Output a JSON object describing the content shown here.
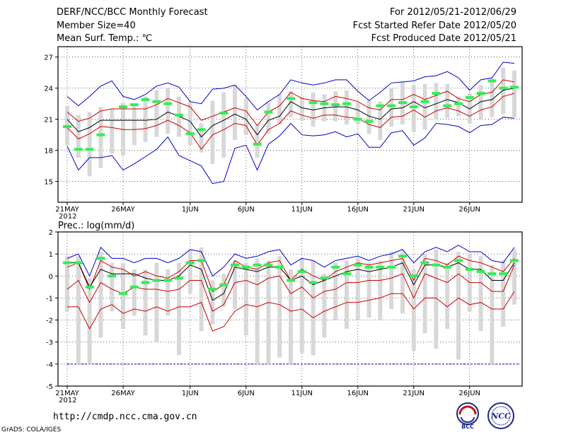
{
  "header": {
    "title": "DERF/NCC/BCC Monthly Forecast",
    "member_size": "Member Size=40",
    "variable": "Mean Surf. Temp.: ℃",
    "period": "For 2012/05/21-2012/06/29",
    "started": "Fcst Started Refer Date 2012/05/20",
    "produced": "Fcst Produced Date 2012/05/21"
  },
  "footer": {
    "url": "http://cmdp.ncc.cma.gov.cn",
    "credit": "GrADS: COLA/IGES"
  },
  "logos": {
    "bcc": "BCC",
    "ncc": "NCC"
  },
  "chart_data": [
    {
      "type": "line",
      "title": "Mean Surf. Temp.: ℃",
      "ylim": [
        13,
        28
      ],
      "yticks": [
        15,
        18,
        21,
        24,
        27
      ],
      "x_ticks": [
        {
          "day": 0,
          "label": "21MAY"
        },
        {
          "day": 5,
          "label": "26MAY"
        },
        {
          "day": 11,
          "label": "1JUN"
        },
        {
          "day": 16,
          "label": "6JUN"
        },
        {
          "day": 21,
          "label": "11JUN"
        },
        {
          "day": 26,
          "label": "16JUN"
        },
        {
          "day": 31,
          "label": "21JUN"
        },
        {
          "day": 36,
          "label": "26JUN"
        }
      ],
      "year_label": "2012",
      "series": [
        {
          "name": "max",
          "color": "#0000cc",
          "values": [
            23.2,
            22.3,
            23.2,
            24.2,
            24.7,
            23.2,
            22.9,
            23.4,
            24.2,
            24.5,
            24.1,
            22.7,
            22.5,
            23.9,
            24.0,
            24.3,
            23.2,
            21.9,
            22.7,
            23.4,
            24.8,
            24.5,
            24.3,
            24.5,
            24.8,
            24.8,
            23.7,
            22.8,
            23.6,
            24.5,
            24.6,
            24.7,
            25.1,
            25.2,
            25.6,
            25.0,
            23.8,
            24.8,
            25.0,
            26.5,
            26.4
          ]
        },
        {
          "name": "upper",
          "color": "#cc0000",
          "values": [
            21.7,
            20.8,
            21.1,
            21.8,
            22.0,
            22.0,
            22.0,
            22.0,
            22.4,
            23.0,
            22.6,
            22.2,
            20.9,
            21.3,
            21.7,
            22.1,
            21.8,
            20.4,
            21.7,
            22.3,
            23.6,
            23.0,
            22.8,
            22.7,
            23.2,
            23.0,
            22.7,
            22.1,
            21.9,
            22.9,
            22.9,
            23.4,
            22.9,
            23.3,
            23.7,
            23.0,
            22.7,
            23.4,
            23.6,
            24.8,
            24.6
          ]
        },
        {
          "name": "mean",
          "color": "#000000",
          "values": [
            21.0,
            19.8,
            20.2,
            20.9,
            20.9,
            20.9,
            20.9,
            20.9,
            21.0,
            21.7,
            21.3,
            20.8,
            19.3,
            20.4,
            20.9,
            21.5,
            21.0,
            19.5,
            20.9,
            21.3,
            22.7,
            22.1,
            21.9,
            22.1,
            22.2,
            22.2,
            21.9,
            21.3,
            21.0,
            22.0,
            22.1,
            22.7,
            22.1,
            22.5,
            22.9,
            22.6,
            22.0,
            22.7,
            22.9,
            23.8,
            24.0
          ]
        },
        {
          "name": "lower",
          "color": "#cc0000",
          "values": [
            20.2,
            19.1,
            19.6,
            20.3,
            20.2,
            20.0,
            20.0,
            20.1,
            20.4,
            20.9,
            20.4,
            19.7,
            18.1,
            19.5,
            20.0,
            20.6,
            20.4,
            18.5,
            20.0,
            20.6,
            21.8,
            21.4,
            21.1,
            21.4,
            21.4,
            21.2,
            21.1,
            20.5,
            20.2,
            21.2,
            21.3,
            21.9,
            21.2,
            21.8,
            22.1,
            21.8,
            21.3,
            21.9,
            22.2,
            23.2,
            23.5
          ]
        },
        {
          "name": "min",
          "color": "#0000cc",
          "values": [
            18.4,
            16.1,
            17.3,
            17.3,
            17.5,
            16.1,
            16.7,
            17.4,
            18.1,
            19.3,
            17.5,
            17.0,
            16.5,
            14.8,
            15.0,
            18.2,
            18.5,
            16.1,
            18.6,
            19.4,
            20.6,
            19.5,
            19.4,
            19.5,
            19.8,
            19.3,
            19.6,
            18.3,
            18.3,
            19.7,
            19.9,
            18.5,
            19.2,
            20.6,
            20.5,
            20.3,
            19.7,
            20.4,
            20.5,
            21.2,
            21.1
          ]
        }
      ],
      "boxes": {
        "color": "#d8d8d8",
        "low": [
          18.5,
          17.3,
          15.5,
          16.3,
          17.7,
          17.5,
          18.5,
          18.8,
          19.3,
          19.6,
          19.3,
          18.5,
          17.8,
          16.7,
          17.3,
          19.0,
          19.5,
          17.3,
          19.6,
          20.5,
          21.2,
          20.9,
          20.3,
          20.8,
          20.8,
          20.5,
          20.5,
          19.6,
          19.0,
          20.3,
          20.5,
          19.8,
          20.0,
          21.0,
          21.1,
          21.3,
          20.6,
          21.0,
          21.2,
          21.5,
          21.2
        ],
        "high": [
          22.3,
          21.4,
          21.7,
          22.2,
          22.0,
          22.6,
          22.5,
          23.2,
          23.8,
          24.0,
          23.2,
          22.7,
          20.6,
          22.8,
          23.6,
          24.3,
          23.0,
          20.5,
          22.6,
          23.4,
          23.7,
          23.2,
          23.6,
          23.4,
          23.7,
          23.8,
          22.6,
          22.8,
          22.7,
          24.0,
          24.6,
          24.3,
          24.4,
          24.5,
          24.4,
          23.2,
          23.5,
          24.3,
          25.0,
          26.0,
          25.7
        ]
      },
      "obs": {
        "color": "#33ee55",
        "values": [
          20.3,
          18.1,
          18.1,
          19.5,
          null,
          22.2,
          22.4,
          22.9,
          22.7,
          22.5,
          21.4,
          19.6,
          20.0,
          null,
          21.6,
          null,
          null,
          18.6,
          21.7,
          null,
          23.0,
          null,
          22.6,
          22.5,
          22.4,
          22.5,
          21.0,
          20.8,
          22.3,
          22.3,
          22.6,
          22.2,
          22.7,
          23.5,
          22.3,
          22.5,
          23.1,
          23.5,
          24.7,
          24.0,
          24.1
        ]
      }
    },
    {
      "type": "line",
      "title": "Prec.: log(mm/d)",
      "ylim": [
        -5,
        2
      ],
      "yticks": [
        -5,
        -4,
        -3,
        -2,
        -1,
        0,
        1,
        2
      ],
      "x_ticks": [
        {
          "day": 0,
          "label": "21MAY"
        },
        {
          "day": 5,
          "label": "26MAY"
        },
        {
          "day": 11,
          "label": "1JUN"
        },
        {
          "day": 16,
          "label": "6JUN"
        },
        {
          "day": 21,
          "label": "11JUN"
        },
        {
          "day": 26,
          "label": "16JUN"
        },
        {
          "day": 31,
          "label": "21JUN"
        },
        {
          "day": 36,
          "label": "26JUN"
        }
      ],
      "year_label": "2012",
      "baseline": -4,
      "series": [
        {
          "name": "max",
          "color": "#0000cc",
          "values": [
            0.8,
            1.0,
            0.0,
            1.3,
            0.8,
            0.8,
            0.6,
            0.8,
            0.8,
            0.6,
            0.8,
            1.2,
            1.1,
            0.0,
            0.4,
            1.0,
            0.8,
            0.9,
            1.1,
            1.2,
            0.5,
            0.8,
            0.7,
            0.4,
            0.7,
            0.8,
            0.9,
            0.7,
            0.9,
            1.0,
            1.2,
            0.6,
            1.1,
            1.3,
            1.1,
            1.4,
            1.1,
            1.1,
            0.7,
            0.6,
            1.3
          ]
        },
        {
          "name": "upper",
          "color": "#cc0000",
          "values": [
            0.4,
            0.6,
            -0.6,
            0.7,
            0.4,
            0.3,
            0.0,
            0.2,
            0.0,
            -0.1,
            0.2,
            0.7,
            0.7,
            -0.7,
            -0.4,
            0.7,
            0.4,
            0.3,
            0.6,
            0.7,
            -0.2,
            0.3,
            0.0,
            -0.2,
            0.2,
            0.4,
            0.6,
            0.5,
            0.6,
            0.7,
            0.8,
            -0.2,
            0.8,
            0.7,
            0.5,
            0.9,
            0.7,
            0.6,
            0.4,
            0.2,
            0.8
          ]
        },
        {
          "name": "mean",
          "color": "#000000",
          "values": [
            0.6,
            0.6,
            -0.5,
            0.3,
            0.1,
            0.1,
            0.1,
            -0.1,
            -0.2,
            -0.2,
            0.0,
            0.5,
            0.3,
            -1.1,
            -0.8,
            0.4,
            0.3,
            0.2,
            0.4,
            0.4,
            -0.2,
            0.0,
            -0.4,
            -0.2,
            0.0,
            0.2,
            0.3,
            0.2,
            0.3,
            0.4,
            0.6,
            -0.4,
            0.5,
            0.5,
            0.4,
            0.6,
            0.3,
            0.3,
            -0.2,
            -0.2,
            0.6
          ]
        },
        {
          "name": "lower",
          "color": "#cc0000",
          "values": [
            -0.6,
            -0.2,
            -1.2,
            -0.3,
            -0.6,
            -0.8,
            -0.5,
            -0.6,
            -0.6,
            -0.7,
            -0.6,
            -0.2,
            -0.2,
            -1.6,
            -1.3,
            -0.3,
            -0.2,
            -0.4,
            -0.1,
            0.0,
            -0.8,
            -0.5,
            -1.0,
            -0.7,
            -0.6,
            -0.3,
            -0.3,
            -0.2,
            -0.2,
            -0.1,
            0.1,
            -1.0,
            0.1,
            -0.1,
            -0.3,
            0.1,
            -0.3,
            -0.3,
            -0.7,
            -0.7,
            0.5
          ]
        },
        {
          "name": "min",
          "color": "#cc0000",
          "values": [
            -1.4,
            -1.4,
            -2.4,
            -1.5,
            -1.3,
            -1.7,
            -1.5,
            -1.6,
            -1.4,
            -1.6,
            -1.4,
            -1.4,
            -1.2,
            -2.5,
            -2.3,
            -1.6,
            -1.3,
            -1.4,
            -1.2,
            -1.3,
            -1.6,
            -1.5,
            -1.9,
            -1.6,
            -1.4,
            -1.2,
            -1.2,
            -1.1,
            -1.0,
            -0.8,
            -0.8,
            -1.5,
            -1.0,
            -1.0,
            -1.4,
            -1.0,
            -1.3,
            -1.2,
            -1.5,
            -1.5,
            -0.7
          ]
        }
      ],
      "boxes": {
        "color": "#d8d8d8",
        "low": [
          -1.6,
          -4.0,
          -4.0,
          -2.8,
          -1.6,
          -2.4,
          -1.8,
          -2.7,
          -3.0,
          -1.8,
          -3.6,
          -0.8,
          -2.5,
          -2.2,
          -1.4,
          -1.5,
          -2.7,
          -4.0,
          -4.0,
          -3.7,
          -4.0,
          -3.5,
          -3.6,
          -2.8,
          -2.0,
          -2.4,
          -2.0,
          -1.9,
          -2.0,
          -1.5,
          -1.7,
          -3.4,
          -2.6,
          -3.3,
          -2.4,
          -3.8,
          -1.6,
          -2.5,
          -4.0,
          -2.3,
          -1.3
        ],
        "high": [
          0.9,
          0.9,
          -0.1,
          1.1,
          0.6,
          0.6,
          0.3,
          0.3,
          0.6,
          0.3,
          0.6,
          1.2,
          1.3,
          -0.2,
          0.1,
          0.7,
          0.6,
          0.8,
          0.7,
          0.9,
          0.3,
          0.8,
          0.7,
          0.1,
          0.6,
          0.7,
          0.8,
          0.6,
          0.7,
          1.1,
          1.1,
          0.3,
          1.0,
          1.2,
          0.6,
          1.1,
          1.0,
          0.9,
          0.5,
          0.7,
          1.2
        ]
      },
      "obs": {
        "color": "#33ee55",
        "values": [
          0.6,
          0.6,
          -0.5,
          0.8,
          0.0,
          -0.8,
          -0.5,
          -0.3,
          -0.2,
          -0.2,
          -0.1,
          0.6,
          0.7,
          -0.6,
          -0.4,
          0.5,
          0.4,
          0.5,
          0.5,
          0.4,
          -0.2,
          0.2,
          -0.3,
          -0.1,
          0.4,
          0.1,
          0.5,
          0.4,
          0.4,
          0.4,
          0.9,
          0.0,
          0.6,
          0.5,
          0.4,
          0.7,
          0.3,
          0.2,
          0.1,
          0.1,
          0.7
        ]
      }
    }
  ]
}
